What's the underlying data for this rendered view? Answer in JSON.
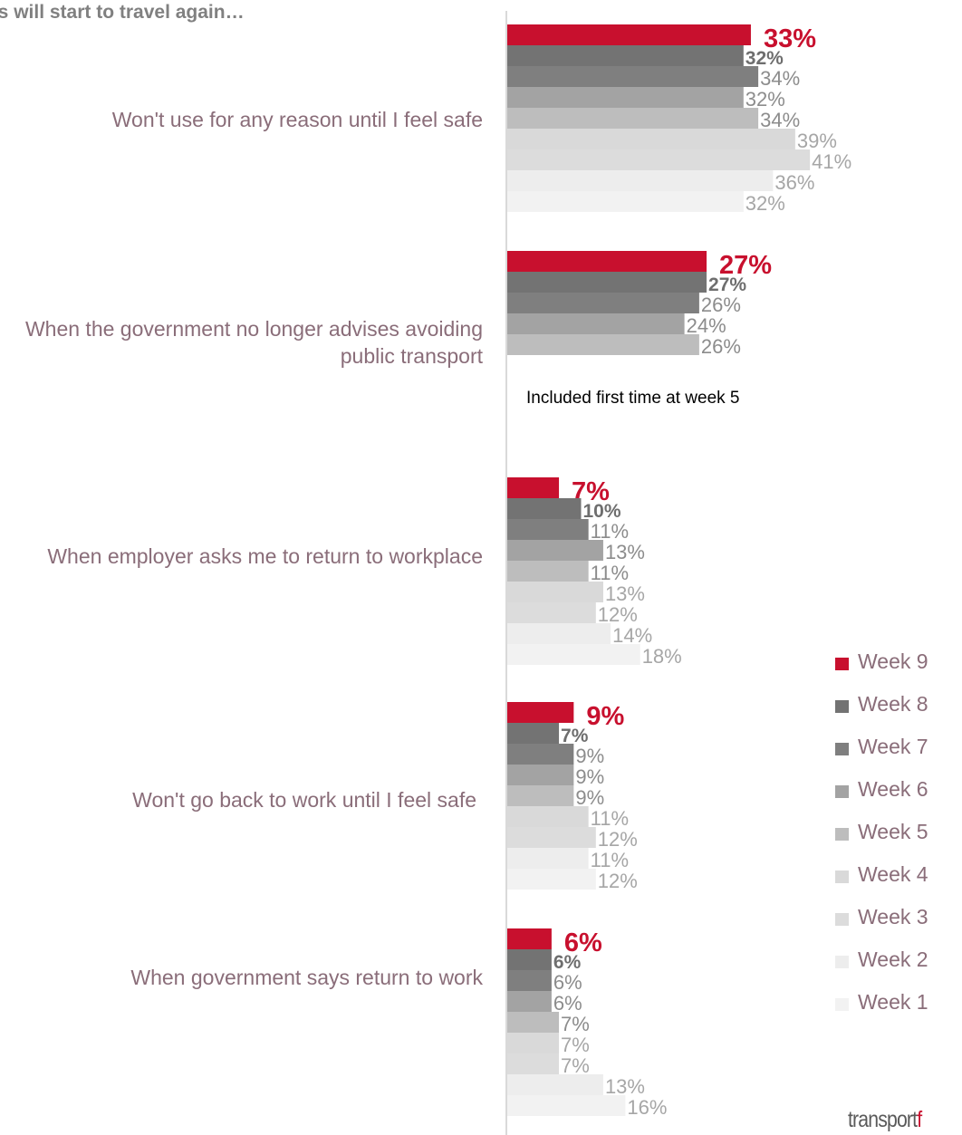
{
  "title": "ys will start to travel again…",
  "note": "Included first time at week 5",
  "logo": {
    "text_main": "transport",
    "text_accent": "f"
  },
  "colors": {
    "accent": "#c8102e",
    "label_text": "#8a6d79",
    "weeks": [
      "#c8102e",
      "#737373",
      "#7f7f7f",
      "#a3a3a3",
      "#bdbdbd",
      "#d9d9d9",
      "#dcdcdc",
      "#ededed",
      "#f2f2f2"
    ]
  },
  "chart_data": {
    "type": "bar",
    "orientation": "horizontal",
    "grid": false,
    "legend": "right",
    "series_names": [
      "Week 9",
      "Week 8",
      "Week 7",
      "Week 6",
      "Week 5",
      "Week 4",
      "Week 3",
      "Week 2",
      "Week 1"
    ],
    "categories": [
      {
        "label": "Won't use for any reason until I feel safe",
        "values": [
          33,
          32,
          34,
          32,
          34,
          39,
          41,
          36,
          32
        ],
        "labels": [
          "33%",
          "32%",
          "34%",
          "32%",
          "34%",
          "39%",
          "41%",
          "36%",
          "32%"
        ]
      },
      {
        "label": "When the government no longer advises avoiding public transport",
        "values": [
          27,
          27,
          26,
          24,
          26
        ],
        "labels": [
          "27%",
          "27%",
          "26%",
          "24%",
          "26%"
        ]
      },
      {
        "label": "When employer asks me to return to workplace",
        "values": [
          7,
          10,
          11,
          13,
          11,
          13,
          12,
          14,
          18
        ],
        "labels": [
          "7%",
          "10%",
          "11%",
          "13%",
          "11%",
          "13%",
          "12%",
          "14%",
          "18%"
        ]
      },
      {
        "label": "Won't go back to work until I feel safe",
        "values": [
          9,
          7,
          9,
          9,
          9,
          11,
          12,
          11,
          12
        ],
        "labels": [
          "9%",
          "7%",
          "9%",
          "9%",
          "9%",
          "11%",
          "12%",
          "11%",
          "12%"
        ]
      },
      {
        "label": "When  government says return to work",
        "values": [
          6,
          6,
          6,
          6,
          7,
          7,
          7,
          13,
          16
        ],
        "labels": [
          "6%",
          "6%",
          "6%",
          "6%",
          "7%",
          "7%",
          "7%",
          "13%",
          "16%"
        ]
      }
    ]
  }
}
